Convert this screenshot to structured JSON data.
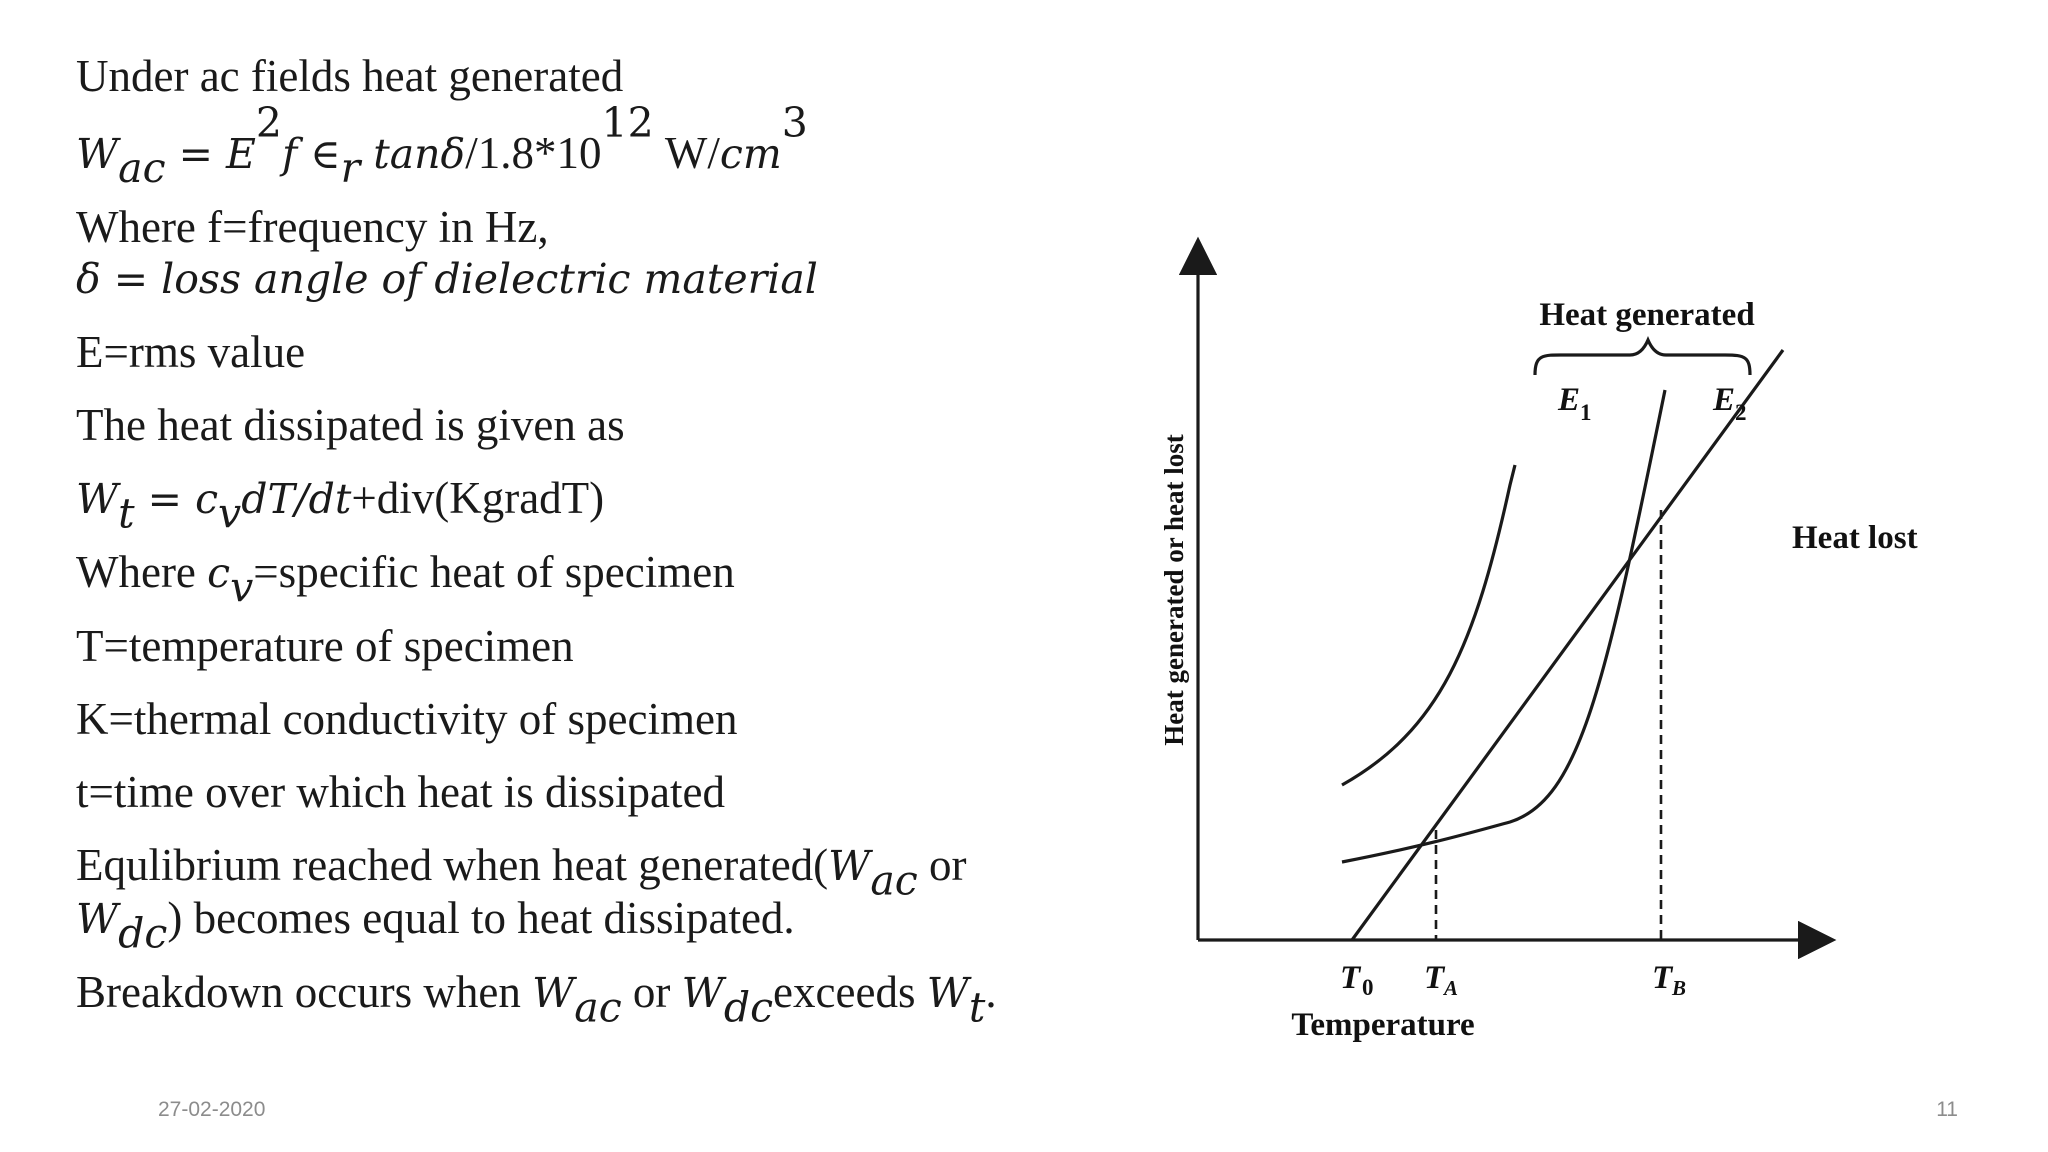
{
  "slide": {
    "line1": "Under ac fields heat generated",
    "formula_wac": {
      "w": "W",
      "w_sub": "ac",
      "eq": " = ",
      "e": "E",
      "e_sup": "2",
      "f_eps": "f ∈",
      "eps_sub": "r",
      "tan": " tanδ",
      "rest": "/1.8*10",
      "exp": "12",
      "unit": "  W/",
      "cm": "cm",
      "cm_sup": "3"
    },
    "where_f": "Where f=frequency in Hz,",
    "delta_def": "δ = loss angle of dielectric material",
    "e_rms": "E=rms value",
    "heat_dissipated_intro": "The heat dissipated is given as",
    "formula_wt": {
      "w": "W",
      "w_sub": "t",
      "eq": " = ",
      "c": "c",
      "c_sub": "v",
      "dt": "dT/dt",
      "rest": "+div(KgradT)"
    },
    "where_cv": {
      "prefix": "Where ",
      "c": "c",
      "c_sub": "v",
      "suffix": "=specific heat of specimen"
    },
    "t_def": "T=temperature of specimen",
    "k_def": "K=thermal conductivity of specimen",
    "time_def": "t=time over which heat is dissipated",
    "equilibrium": {
      "part1": "Equlibrium reached when heat generated(",
      "w1": "W",
      "w1_sub": "ac",
      "or": " or",
      "w2": "W",
      "w2_sub": "dc",
      "part2": ") becomes equal to heat dissipated."
    },
    "breakdown": {
      "part1": "Breakdown occurs when ",
      "w1": "W",
      "w1_sub": "ac",
      "or": " or ",
      "w2": "W",
      "w2_sub": "dc",
      "exceeds": "exceeds ",
      "w3": "W",
      "w3_sub": "t",
      "end": "."
    }
  },
  "figure": {
    "ylabel": "Heat generated or heat lost",
    "xlabel": "Temperature",
    "brace_label": "Heat generated",
    "curve_e1": {
      "letter": "E",
      "sub": "1"
    },
    "curve_e2": {
      "letter": "E",
      "sub": "2"
    },
    "heat_lost_label": "Heat lost",
    "t0": {
      "letter": "T",
      "sub": "0"
    },
    "ta": {
      "letter": "T",
      "sub": "A"
    },
    "tb": {
      "letter": "T",
      "sub": "B"
    }
  },
  "footer": {
    "date": "27-02-2020",
    "page": "11"
  }
}
